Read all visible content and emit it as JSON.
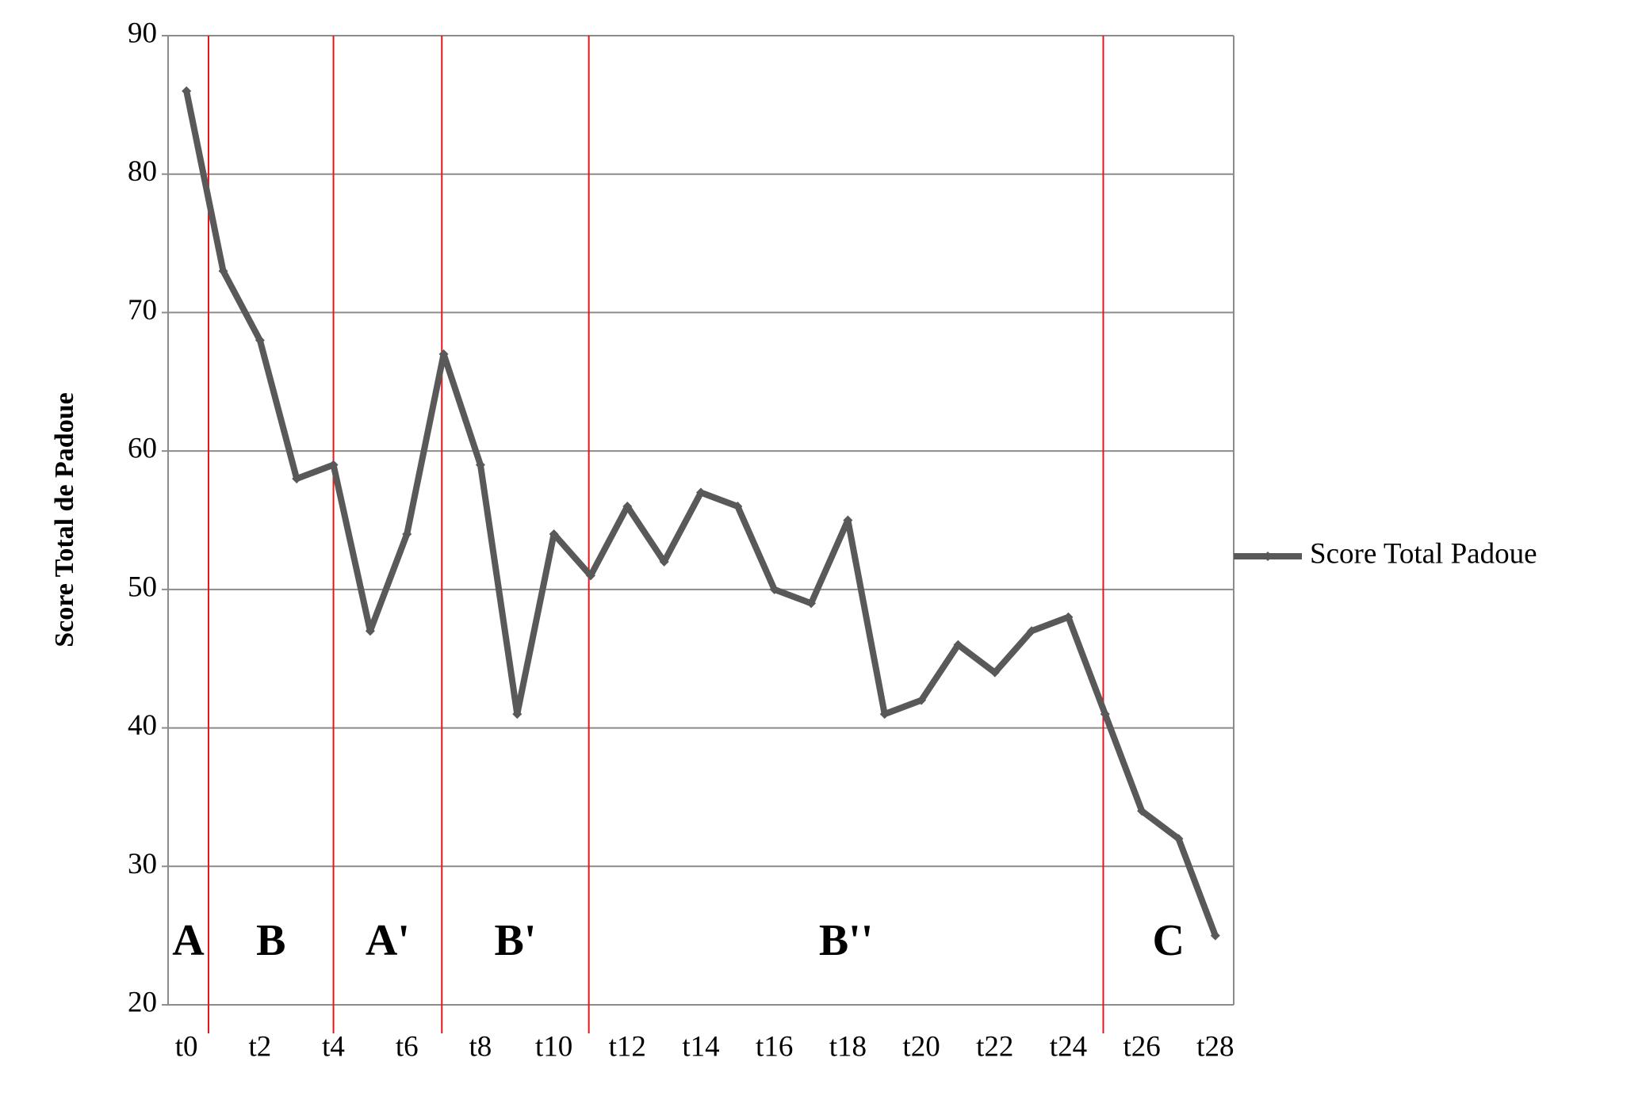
{
  "chart_data": {
    "type": "line",
    "y_label": "Score Total de Padoue",
    "categories": [
      "t0",
      null,
      "t2",
      null,
      "t4",
      null,
      "t6",
      null,
      "t8",
      null,
      "t10",
      null,
      "t12",
      null,
      "t14",
      null,
      "t16",
      null,
      "t18",
      null,
      "t20",
      null,
      "t22",
      null,
      "t24",
      null,
      "t26",
      null,
      "t28"
    ],
    "series": [
      {
        "name": "Score Total Padoue",
        "color": "#595959",
        "values": [
          86,
          73,
          68,
          58,
          59,
          47,
          54,
          67,
          59,
          41,
          54,
          51,
          56,
          52,
          57,
          56,
          50,
          49,
          55,
          41,
          42,
          46,
          44,
          47,
          48,
          41,
          34,
          32,
          25
        ]
      }
    ],
    "ylim": [
      20,
      90
    ],
    "yticks": [
      20,
      30,
      40,
      50,
      60,
      70,
      80,
      90
    ],
    "grid": true,
    "legend": "right",
    "phases": [
      "A",
      "B",
      "A'",
      "B'",
      "B''",
      "C"
    ],
    "phase_boundaries": [
      0.6,
      4,
      6.95,
      10.95,
      24.95
    ],
    "phase_color": "#e8141b"
  }
}
